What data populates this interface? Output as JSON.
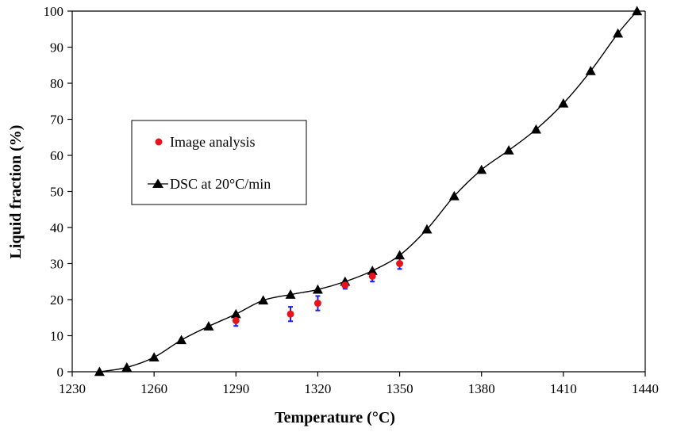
{
  "chart_data": {
    "type": "line",
    "title": "",
    "xlabel": "Temperature (°C)",
    "ylabel": "Liquid fraction (%)",
    "xlim": [
      1230,
      1440
    ],
    "ylim": [
      0,
      100
    ],
    "x_ticks": [
      "1230",
      "1260",
      "1290",
      "1320",
      "1350",
      "1380",
      "1410",
      "1440"
    ],
    "y_ticks": [
      "0",
      "10",
      "20",
      "30",
      "40",
      "50",
      "60",
      "70",
      "80",
      "90",
      "100"
    ],
    "grid": false,
    "legend_position": "left",
    "series": [
      {
        "name": "Image analysis",
        "marker": "circle",
        "color": "#e8141b",
        "error_bar_color": "#1a1aff",
        "line": false,
        "x": [
          1290,
          1310,
          1320,
          1330,
          1340,
          1350
        ],
        "y": [
          14.2,
          16.0,
          19.0,
          24.0,
          26.5,
          30.0
        ],
        "err": [
          1.5,
          2.0,
          2.0,
          1.0,
          1.5,
          1.5
        ]
      },
      {
        "name": "DSC at 20°C/min",
        "marker": "triangle",
        "color": "#000000",
        "line": true,
        "x": [
          1240,
          1250,
          1260,
          1270,
          1280,
          1290,
          1300,
          1310,
          1320,
          1330,
          1340,
          1350,
          1360,
          1370,
          1380,
          1390,
          1400,
          1410,
          1420,
          1430,
          1437
        ],
        "y": [
          0,
          1.2,
          4.0,
          8.8,
          12.6,
          16.0,
          19.8,
          21.4,
          22.8,
          25.0,
          28.0,
          32.3,
          39.5,
          48.7,
          56.0,
          61.4,
          67.2,
          74.4,
          83.4,
          93.8,
          100
        ]
      }
    ]
  }
}
